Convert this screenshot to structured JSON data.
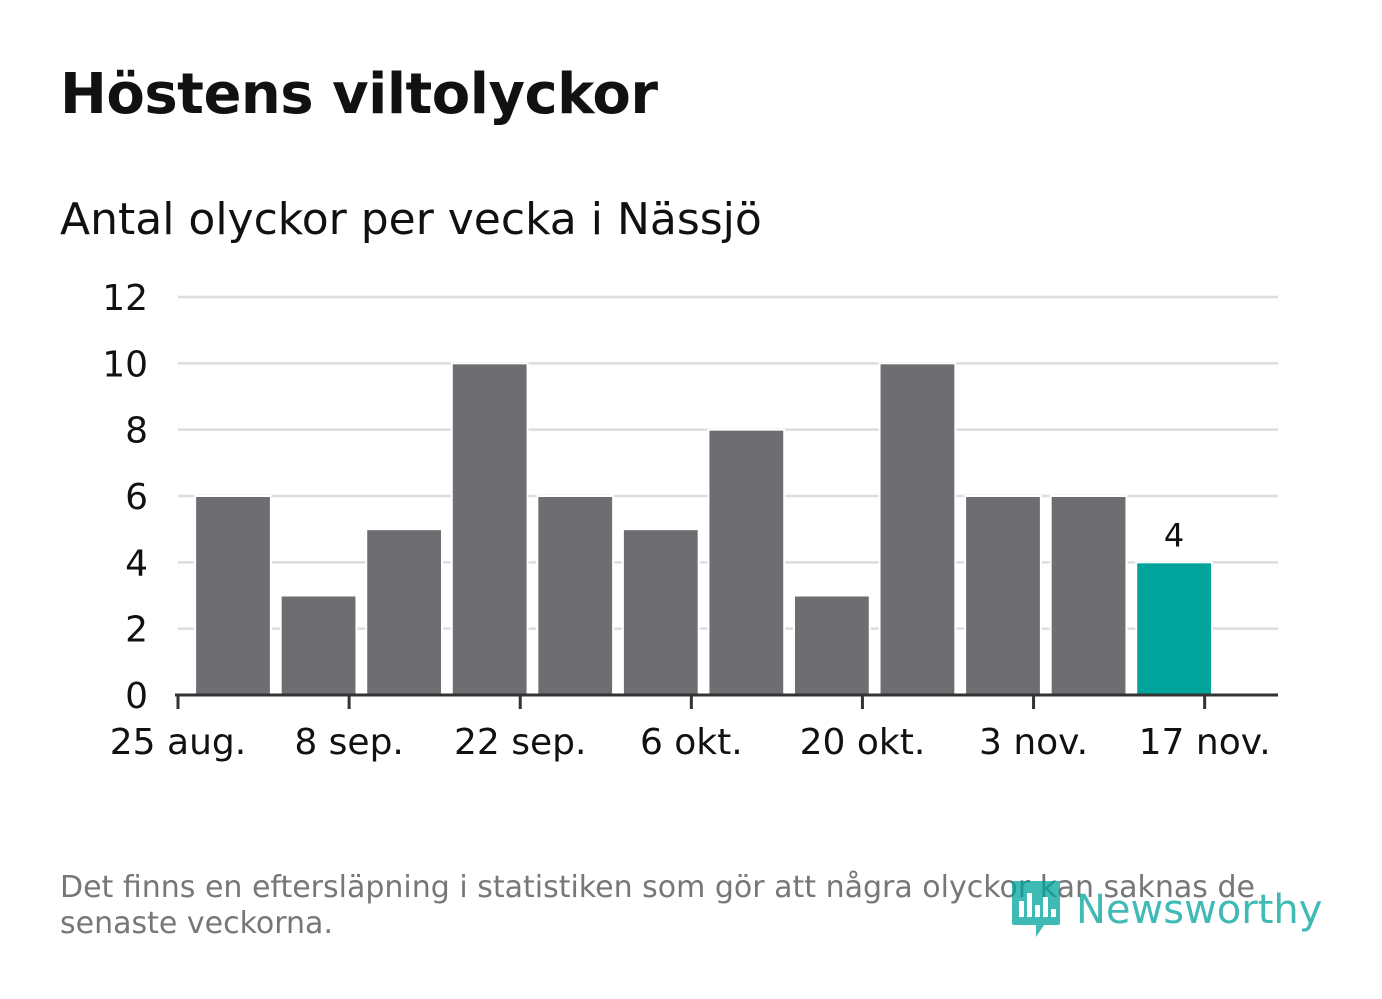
{
  "title": "Höstens viltolyckor",
  "subtitle": "Antal olyckor per vecka i Nässjö",
  "footnote": "Det finns en eftersläpning i statistiken som gör att några olyckor kan saknas de senaste veckorna.",
  "brand": {
    "name": "Newsworthy",
    "icon": "bar-chart-speech-bubble-icon",
    "color": "#00a49b"
  },
  "colors": {
    "bar": "#6e6d72",
    "highlight": "#00a49b",
    "grid": "#dddddd",
    "axis": "#333333",
    "text": "#111111",
    "muted": "#77777a"
  },
  "chart_data": {
    "type": "bar",
    "x_axis_type": "date",
    "bar_period": "week",
    "categories": [
      "2019-08-26",
      "2019-09-02",
      "2019-09-09",
      "2019-09-16",
      "2019-09-23",
      "2019-09-30",
      "2019-10-07",
      "2019-10-14",
      "2019-10-21",
      "2019-10-28",
      "2019-11-04",
      "2019-11-11"
    ],
    "values": [
      6,
      3,
      5,
      10,
      6,
      5,
      8,
      3,
      10,
      6,
      6,
      4
    ],
    "highlight_index": 11,
    "data_labels": [
      {
        "index": 11,
        "text": "4"
      }
    ],
    "xlim": [
      "2019-08-25",
      "2019-11-23"
    ],
    "xticks": [
      {
        "date": "2019-08-25",
        "label": "25 aug."
      },
      {
        "date": "2019-09-08",
        "label": "8 sep."
      },
      {
        "date": "2019-09-22",
        "label": "22 sep."
      },
      {
        "date": "2019-10-06",
        "label": "6 okt."
      },
      {
        "date": "2019-10-20",
        "label": "20 okt."
      },
      {
        "date": "2019-11-03",
        "label": "3 nov."
      },
      {
        "date": "2019-11-17",
        "label": "17 nov."
      }
    ],
    "ylim": [
      0,
      12
    ],
    "yticks": [
      0,
      2,
      4,
      6,
      8,
      10,
      12
    ],
    "grid": true,
    "xlabel": "",
    "ylabel": ""
  }
}
